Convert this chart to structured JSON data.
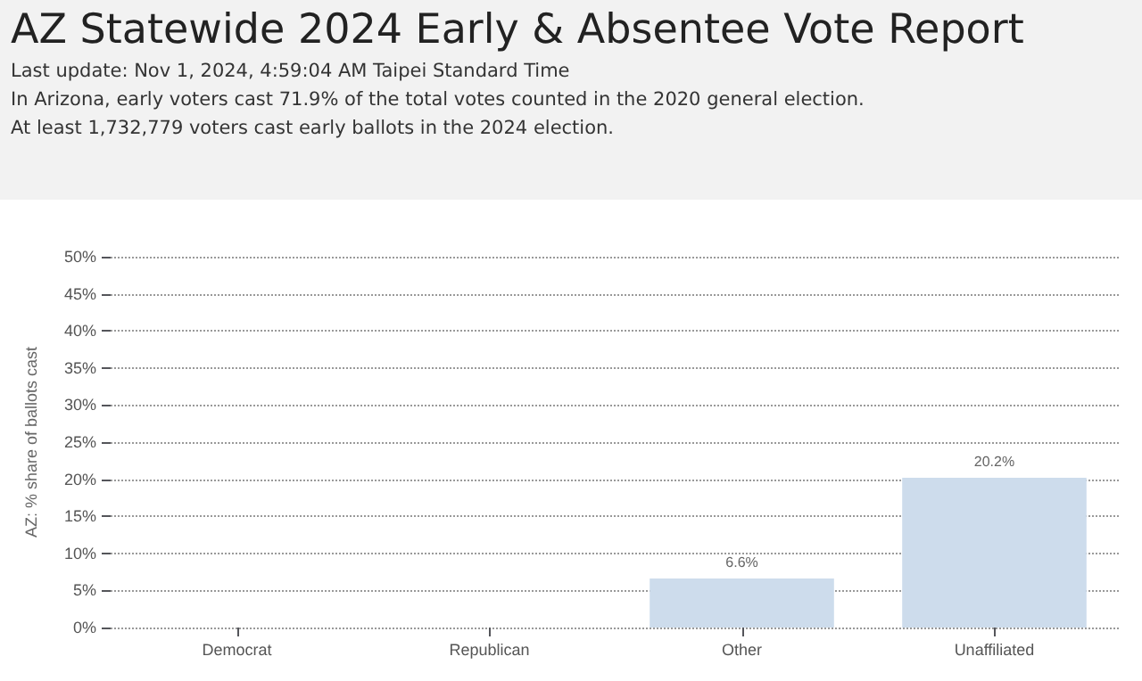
{
  "chart_data": {
    "type": "bar",
    "title": "AZ Statewide 2024 Early & Absentee Vote Report",
    "subtitle": "Last update: Nov 1, 2024, 4:59:04 AM Taipei Standard Time",
    "annotations": [
      "In Arizona, early voters cast 71.9% of the total votes counted in the 2020 general election.",
      "At least 1,732,779 voters cast early ballots in the 2024 election."
    ],
    "ylabel": "AZ: % share of ballots cast",
    "categories": [
      "Democrat",
      "Republican",
      "Other",
      "Unaffiliated"
    ],
    "values": [
      null,
      null,
      6.6,
      20.2
    ],
    "value_labels": [
      null,
      null,
      "6.6%",
      "20.2%"
    ],
    "color": "#cddcec",
    "ylim": [
      0,
      50
    ],
    "yticks": [
      {
        "value": 0,
        "label": "0%"
      },
      {
        "value": 5,
        "label": "5%"
      },
      {
        "value": 10,
        "label": "10%"
      },
      {
        "value": 15,
        "label": "15%"
      },
      {
        "value": 20,
        "label": "20%"
      },
      {
        "value": 25,
        "label": "25%"
      },
      {
        "value": 30,
        "label": "30%"
      },
      {
        "value": 35,
        "label": "35%"
      },
      {
        "value": 40,
        "label": "40%"
      },
      {
        "value": 45,
        "label": "45%"
      },
      {
        "value": 50,
        "label": "50%"
      }
    ],
    "grid": "y"
  }
}
